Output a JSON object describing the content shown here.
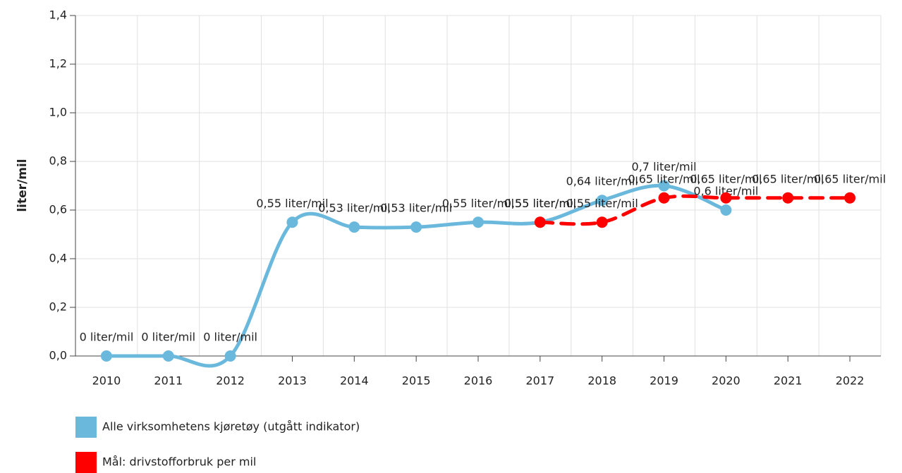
{
  "chart_data": {
    "type": "line",
    "y_label": "liter/mil",
    "categories": [
      "2010",
      "2011",
      "2012",
      "2013",
      "2014",
      "2015",
      "2016",
      "2017",
      "2018",
      "2019",
      "2020",
      "2021",
      "2022"
    ],
    "series": [
      {
        "name": "Alle virksomhetens kjøretøy (utgått indikator)",
        "color": "#6bb8dd",
        "dash": false,
        "values": [
          0,
          0,
          0,
          0.55,
          0.53,
          0.53,
          0.55,
          0.55,
          0.64,
          0.7,
          0.6,
          null,
          null
        ],
        "value_labels": [
          "0 liter/mil",
          "0 liter/mil",
          "0 liter/mil",
          "0,55 liter/mil",
          "0,53 liter/mil",
          "0,53 liter/mil",
          "0,55 liter/mil",
          "0,55 liter/mil",
          "0,64 liter/mil",
          "0,7 liter/mil",
          "0,6 liter/mil",
          null,
          null
        ]
      },
      {
        "name": "Mål: drivstofforbruk per mil",
        "color": "#ff0000",
        "dash": true,
        "values": [
          null,
          null,
          null,
          null,
          null,
          null,
          null,
          0.55,
          0.55,
          0.65,
          0.65,
          0.65,
          0.65
        ],
        "value_labels": [
          null,
          null,
          null,
          null,
          null,
          null,
          null,
          "0,55 liter/mil",
          "0,55 liter/mil",
          "0,65 liter/mil",
          "0,65 liter/mil",
          "0,65 liter/mil",
          "0,65 liter/mil"
        ]
      }
    ],
    "ylim": [
      0,
      1.4
    ],
    "yticks": [
      {
        "value": 0,
        "label": "0,0"
      },
      {
        "value": 0.2,
        "label": "0,2"
      },
      {
        "value": 0.4,
        "label": "0,4"
      },
      {
        "value": 0.6,
        "label": "0,6"
      },
      {
        "value": 0.8,
        "label": "0,8"
      },
      {
        "value": 1.0,
        "label": "1,0"
      },
      {
        "value": 1.2,
        "label": "1,2"
      },
      {
        "value": 1.4,
        "label": "1,4"
      }
    ],
    "grid": true
  }
}
